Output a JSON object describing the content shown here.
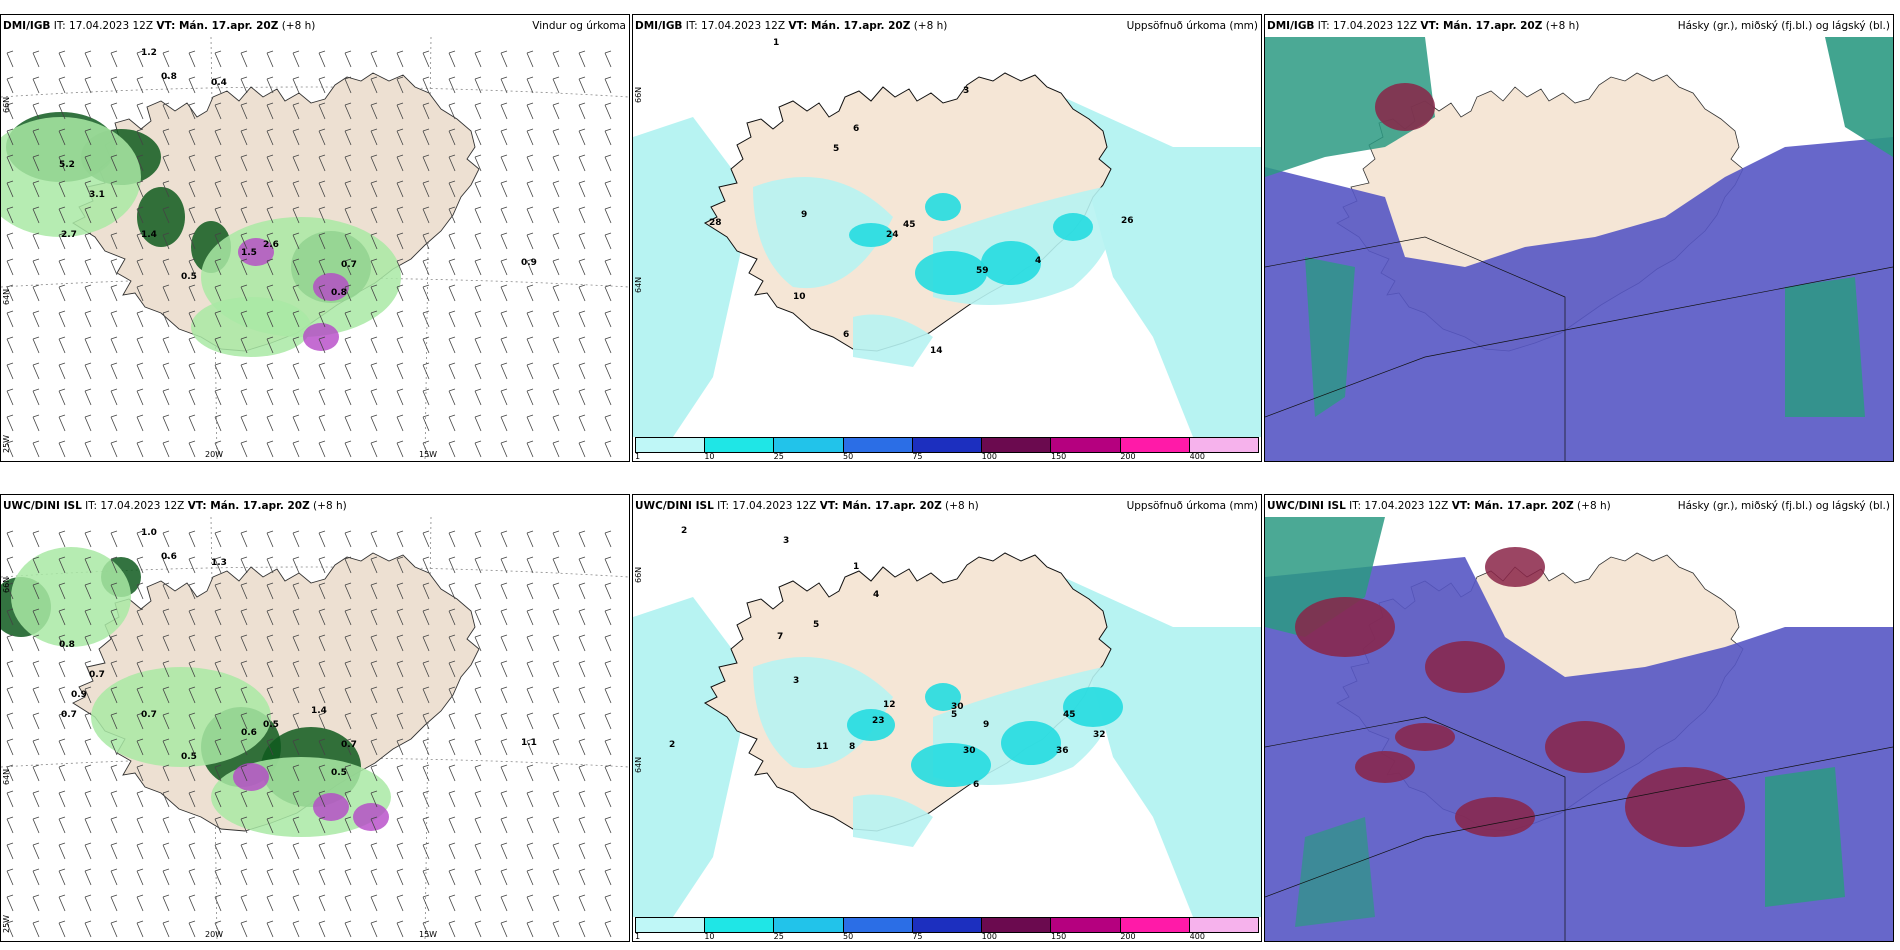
{
  "rows": [
    {
      "model_label": "DMI/IGB",
      "it_text": "IT: 17.04.2023 12Z",
      "vt_text": "VT: Mán. 17.apr. 20Z",
      "lead": "(+8 h)",
      "panel_titles": [
        "Vindur og úrkoma",
        "Uppsöfnuð úrkoma (mm)",
        "Hásky (gr.), miðský (fj.bl.) og lágský (bl.)"
      ],
      "wind_labels": [
        "5.2",
        "3.1",
        "1.5",
        "2.6",
        "0.9",
        "0.7",
        "0.8",
        "0.4",
        "1.2",
        "0.8",
        "1.4",
        "0.5",
        "2.7"
      ],
      "precip_labels": [
        "1",
        "3",
        "6",
        "5",
        "9",
        "10",
        "28",
        "45",
        "26",
        "59",
        "24",
        "14",
        "6",
        "4"
      ]
    },
    {
      "model_label": "UWC/DINI ISL",
      "it_text": "IT: 17.04.2023 12Z",
      "vt_text": "VT: Mán. 17.apr. 20Z",
      "lead": "(+8 h)",
      "panel_titles": [
        "",
        "Uppsöfnuð úrkoma (mm)",
        "Hásky (gr.), miðský (fj.bl.) og lágský (bl.)"
      ],
      "wind_labels": [
        "0.8",
        "0.7",
        "0.6",
        "0.5",
        "1.1",
        "0.7",
        "0.5",
        "1.3",
        "1.0",
        "0.6",
        "0.7",
        "0.5",
        "0.7",
        "0.9",
        "1.4"
      ],
      "precip_labels": [
        "2",
        "3",
        "1",
        "4",
        "5",
        "7",
        "12",
        "30",
        "23",
        "11",
        "8",
        "36",
        "32",
        "45",
        "30",
        "5",
        "9",
        "2",
        "6",
        "3"
      ]
    }
  ],
  "axes": {
    "lat_labels": [
      "66N",
      "64N"
    ],
    "lon_labels": [
      "20W",
      "15W"
    ],
    "lon_left_label": "25W"
  },
  "colorbar": {
    "ticks": [
      "1",
      "10",
      "25",
      "50",
      "75",
      "100",
      "150",
      "200",
      "400"
    ],
    "colors": [
      "#bff7f7",
      "#1fe6e6",
      "#22c3ea",
      "#2b6ee6",
      "#1c2fbf",
      "#6b0a4f",
      "#b5007f",
      "#ff1aa8",
      "#f6b2ec"
    ]
  },
  "colors": {
    "land": "#f5e6d6",
    "land_wind": "#ede0d2",
    "precip_light": "#b7f3f2",
    "precip_mid": "#25dce0",
    "cloud_low": "#5657c4",
    "cloud_mid": "#8a2548",
    "cloud_high": "#2c9a83",
    "green_dark": "#0f5a1f",
    "green_light": "#a9e9a4",
    "magenta": "#b547c7"
  }
}
